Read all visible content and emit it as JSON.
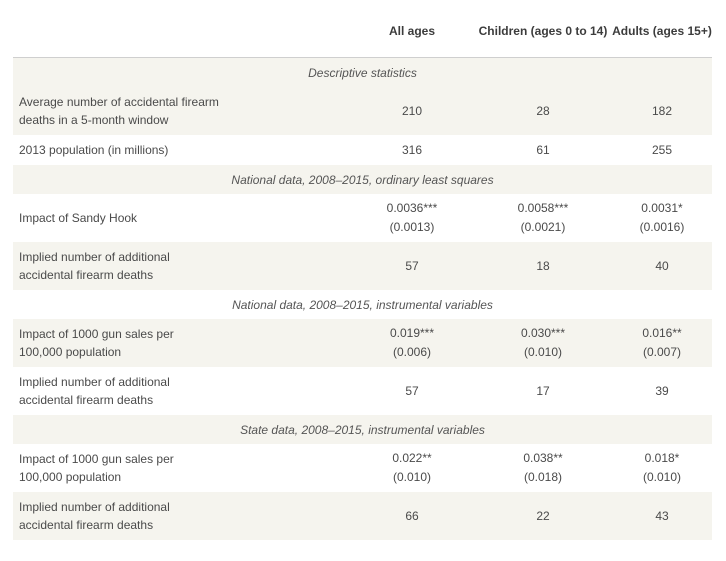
{
  "header": {
    "col1": "All ages",
    "col2": "Children (ages 0 to 14)",
    "col3": "Adults (ages 15+)"
  },
  "sections": [
    {
      "title": "Descriptive statistics",
      "rows": [
        {
          "label": "Average number of accidental firearm deaths in a 5-month window",
          "v1": "210",
          "v2": "28",
          "v3": "182"
        },
        {
          "label": "2013 population (in millions)",
          "v1": "316",
          "v2": "61",
          "v3": "255"
        }
      ]
    },
    {
      "title": "National data, 2008–2015, ordinary least squares",
      "rows": [
        {
          "label": "Impact of Sandy Hook",
          "v1": "0.0036***",
          "s1": "(0.0013)",
          "v2": "0.0058***",
          "s2": "(0.0021)",
          "v3": "0.0031*",
          "s3": "(0.0016)"
        },
        {
          "label": "Implied number of additional accidental firearm deaths",
          "v1": "57",
          "v2": "18",
          "v3": "40"
        }
      ]
    },
    {
      "title": "National data, 2008–2015, instrumental variables",
      "rows": [
        {
          "label": "Impact of 1000 gun sales per 100,000 population",
          "v1": "0.019***",
          "s1": "(0.006)",
          "v2": "0.030***",
          "s2": "(0.010)",
          "v3": "0.016**",
          "s3": "(0.007)"
        },
        {
          "label": "Implied number of additional accidental firearm deaths",
          "v1": "57",
          "v2": "17",
          "v3": "39"
        }
      ]
    },
    {
      "title": "State data, 2008–2015, instrumental variables",
      "rows": [
        {
          "label": "Impact of 1000 gun sales per 100,000 population",
          "v1": "0.022**",
          "s1": "(0.010)",
          "v2": "0.038**",
          "s2": "(0.018)",
          "v3": "0.018*",
          "s3": "(0.010)"
        },
        {
          "label": "Implied number of additional accidental firearm deaths",
          "v1": "66",
          "v2": "22",
          "v3": "43"
        }
      ]
    }
  ]
}
